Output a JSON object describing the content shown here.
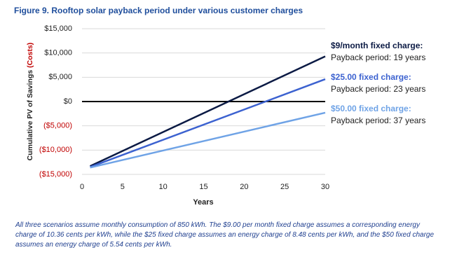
{
  "chart_data": {
    "type": "line",
    "title": "Figure 9. Rooftop solar payback period under various customer charges",
    "ylabel": "Cumulative PV of Savings",
    "ylabel_negative": "(Costs)",
    "xlabel": "Years",
    "x": [
      1,
      30
    ],
    "series": [
      {
        "name": "$9/month fixed charge:",
        "color": "#0b1a44",
        "values": [
          -13300,
          9300
        ]
      },
      {
        "name": "$25.00 fixed charge:",
        "color": "#3c62d0",
        "values": [
          -13500,
          4600
        ]
      },
      {
        "name": "$50.00 fixed charge:",
        "color": "#6fa3e6",
        "values": [
          -13600,
          -2300
        ]
      }
    ],
    "annotations": [
      "Payback period: 19 years",
      "Payback period: 23 years",
      "Payback period: 37 years"
    ],
    "xlim": [
      0,
      30
    ],
    "xticks": [
      0,
      5,
      10,
      15,
      20,
      25,
      30
    ],
    "ylim": [
      -15000,
      15000
    ],
    "yticks": [
      {
        "value": -15000,
        "label": "($15,000)"
      },
      {
        "value": -10000,
        "label": "($10,000)"
      },
      {
        "value": -5000,
        "label": "($5,000)"
      },
      {
        "value": 0,
        "label": "$0"
      },
      {
        "value": 5000,
        "label": "$5,000"
      },
      {
        "value": 10000,
        "label": "$10,000"
      },
      {
        "value": 15000,
        "label": "$15,000"
      }
    ],
    "negative_color": "#c00000",
    "grid": true,
    "footnote": "All three scenarios assume monthly consumption of 850 kWh. The $9.00 per month fixed charge assumes a corresponding energy charge of 10.36 cents per kWh, while the $25 fixed charge assumes an energy charge of 8.48 cents per kWh, and the $50 fixed charge assumes an energy charge of 5.54 cents per kWh."
  }
}
